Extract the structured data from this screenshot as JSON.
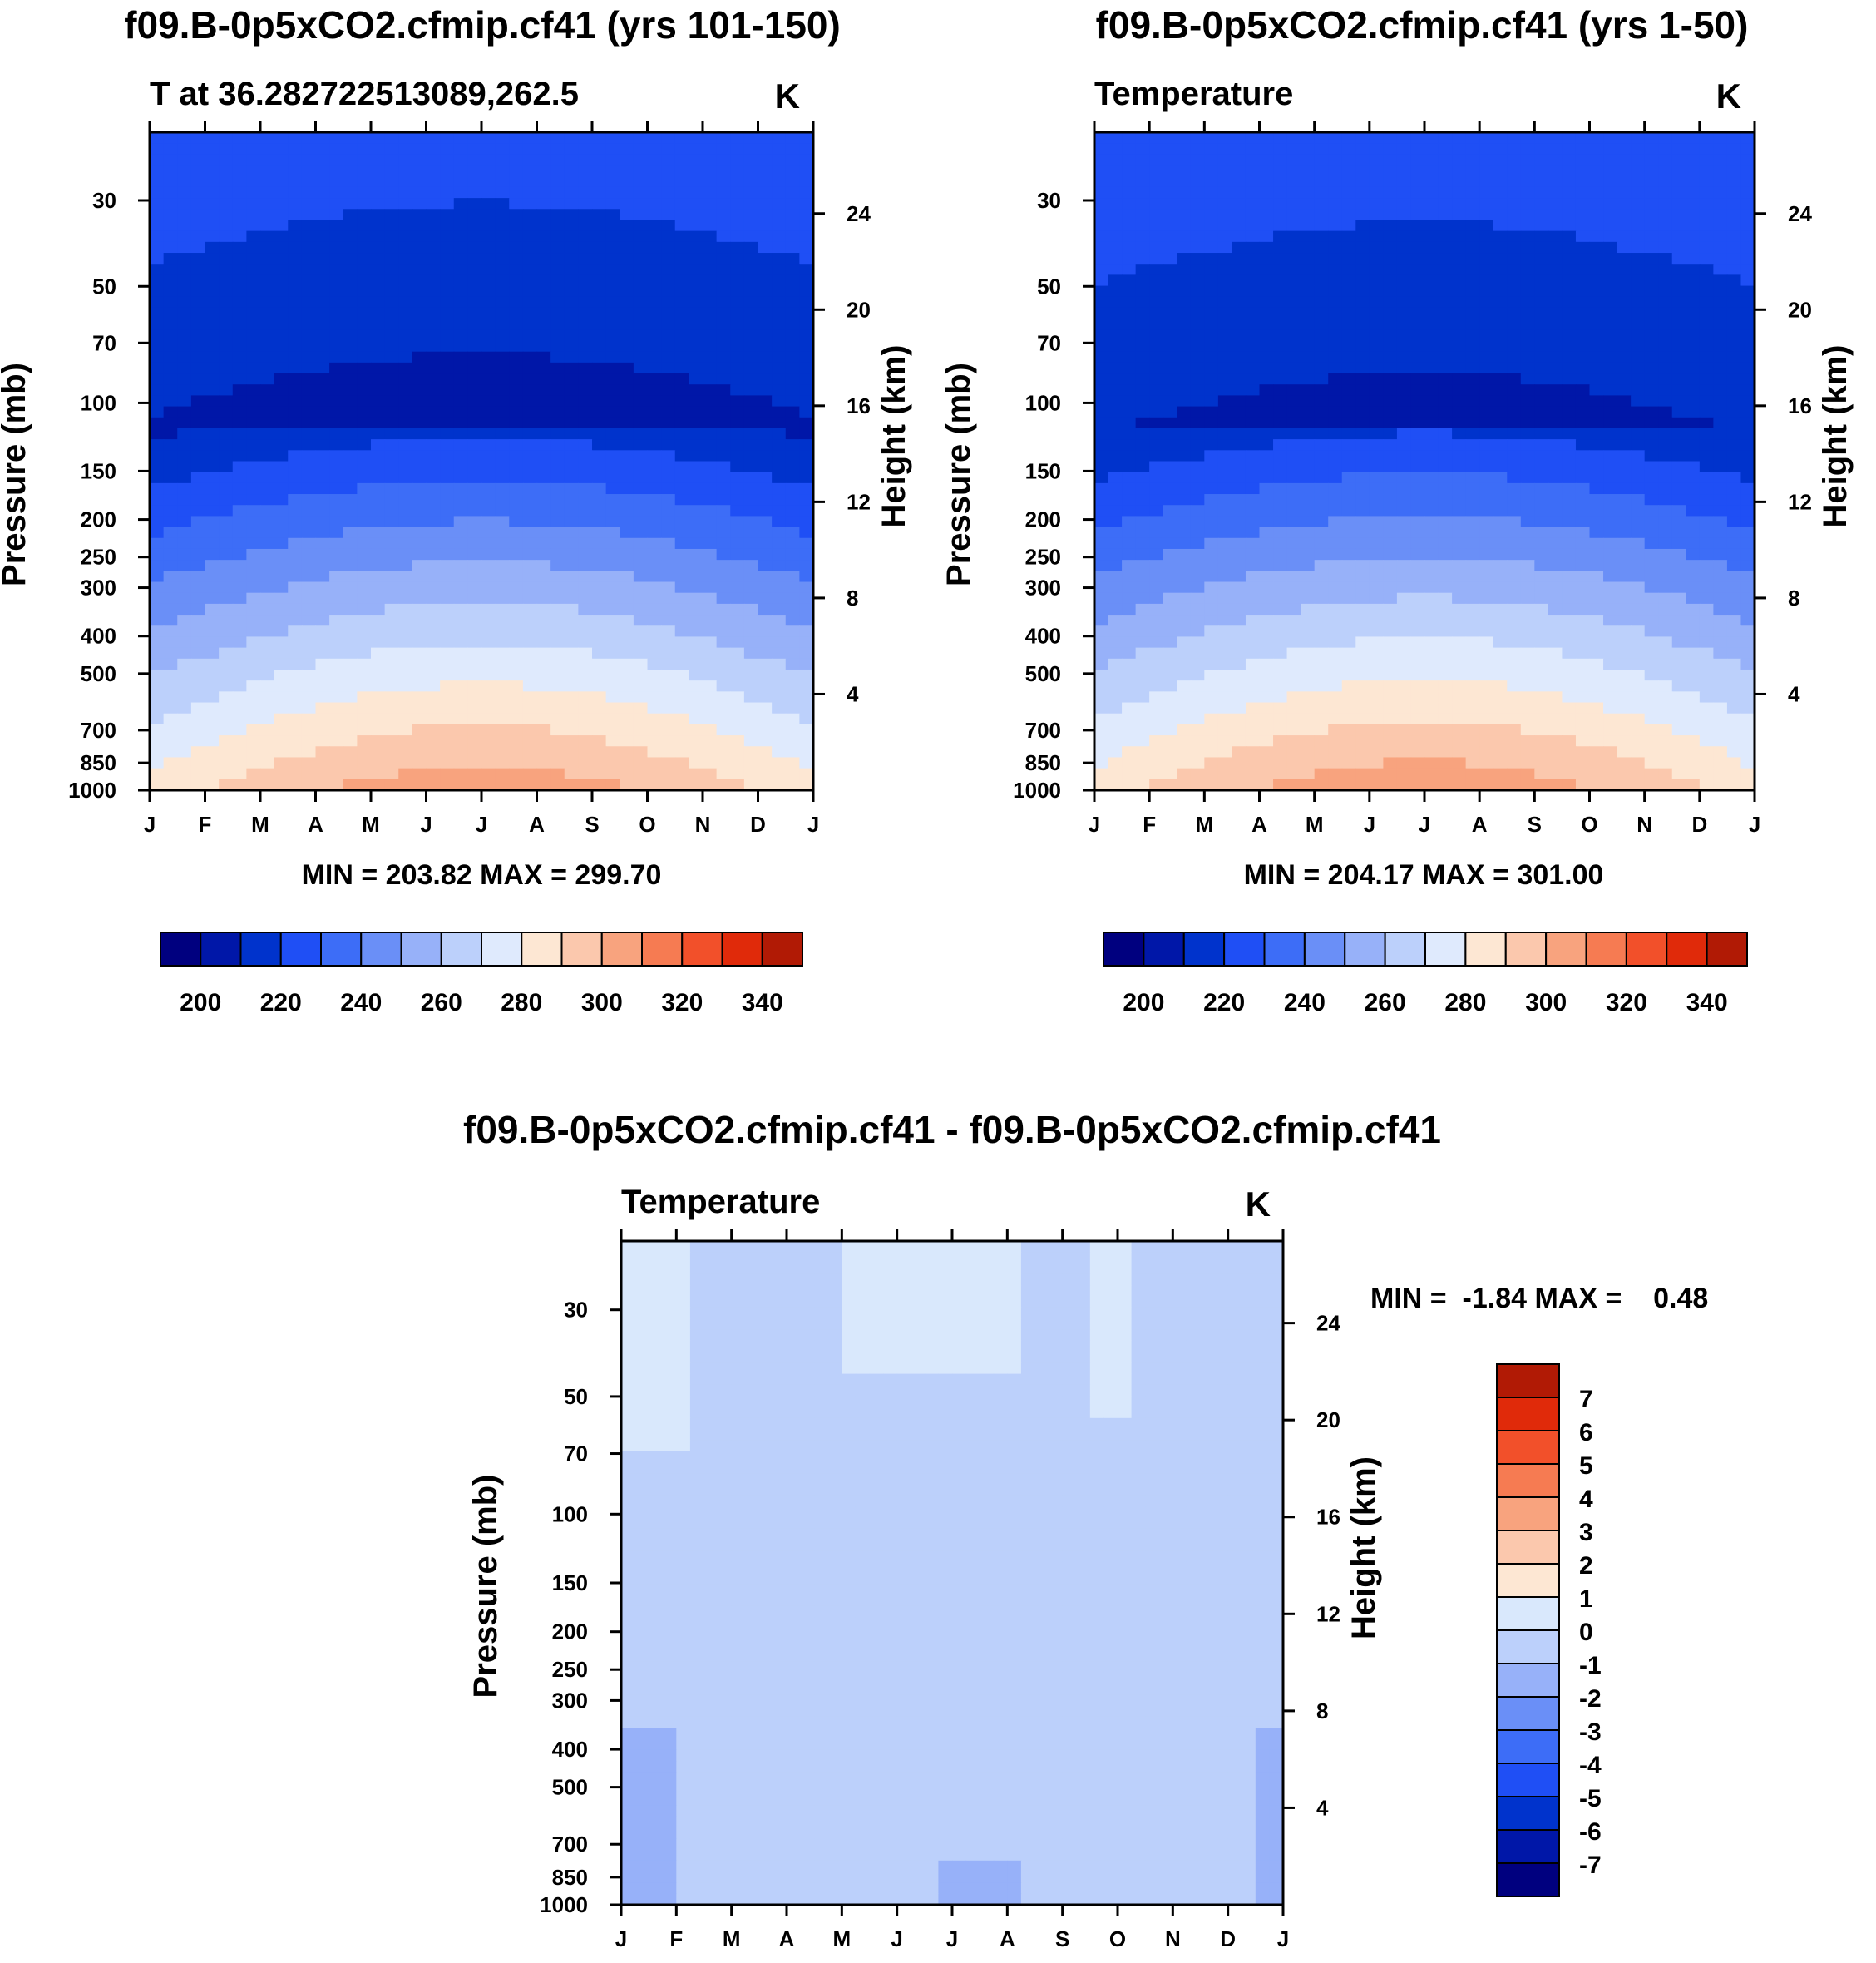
{
  "figure": {
    "top_left_title": "f09.B-0p5xCO2.cfmip.cf41 (yrs 101-150)",
    "top_right_title": "f09.B-0p5xCO2.cfmip.cf41 (yrs 1-50)",
    "bottom_title": "f09.B-0p5xCO2.cfmip.cf41 - f09.B-0p5xCO2.cfmip.cf41"
  },
  "chart_data": [
    {
      "id": "left",
      "type": "heatmap",
      "subtitle": "T at 36.282722513089,262.5",
      "units_label": "K",
      "xlabel": "",
      "ylabel": "Pressure (mb)",
      "ylabel_right": "Height (km)",
      "x_ticks": [
        "J",
        "F",
        "M",
        "A",
        "M",
        "J",
        "J",
        "A",
        "S",
        "O",
        "N",
        "D",
        "J"
      ],
      "y_ticks": [
        30,
        50,
        70,
        100,
        150,
        200,
        250,
        300,
        400,
        500,
        700,
        850,
        1000
      ],
      "y_ticks_right": [
        24,
        20,
        16,
        12,
        8,
        4
      ],
      "ylim": [
        1000,
        20
      ],
      "stats_text": "MIN = 203.82 MAX = 299.70",
      "min": 203.82,
      "max": 299.7,
      "colorbar_levels": [
        200,
        210,
        220,
        230,
        240,
        250,
        260,
        270,
        280,
        290,
        300,
        310,
        320,
        330,
        340
      ],
      "colorbar_labels": [
        "200",
        "220",
        "240",
        "260",
        "280",
        "300",
        "320",
        "340"
      ],
      "colors": [
        "#00007f",
        "#0017a8",
        "#0033cc",
        "#1f4ff5",
        "#3d6df7",
        "#6a8ff7",
        "#97b1f9",
        "#bcd0fb",
        "#dfeafd",
        "#fde7d3",
        "#fbc8ad",
        "#f8a37e",
        "#f67b52",
        "#f2502a",
        "#e02a0a",
        "#b11a05",
        "#830000"
      ]
    },
    {
      "id": "right",
      "type": "heatmap",
      "subtitle": "Temperature",
      "units_label": "K",
      "xlabel": "",
      "ylabel": "Pressure (mb)",
      "ylabel_right": "Height (km)",
      "x_ticks": [
        "J",
        "F",
        "M",
        "A",
        "M",
        "J",
        "J",
        "A",
        "S",
        "O",
        "N",
        "D",
        "J"
      ],
      "y_ticks": [
        30,
        50,
        70,
        100,
        150,
        200,
        250,
        300,
        400,
        500,
        700,
        850,
        1000
      ],
      "y_ticks_right": [
        24,
        20,
        16,
        12,
        8,
        4
      ],
      "ylim": [
        1000,
        20
      ],
      "stats_text": "MIN = 204.17 MAX = 301.00",
      "min": 204.17,
      "max": 301.0,
      "colorbar_levels": [
        200,
        210,
        220,
        230,
        240,
        250,
        260,
        270,
        280,
        290,
        300,
        310,
        320,
        330,
        340
      ],
      "colorbar_labels": [
        "200",
        "220",
        "240",
        "260",
        "280",
        "300",
        "320",
        "340"
      ],
      "colors": [
        "#00007f",
        "#0017a8",
        "#0033cc",
        "#1f4ff5",
        "#3d6df7",
        "#6a8ff7",
        "#97b1f9",
        "#bcd0fb",
        "#dfeafd",
        "#fde7d3",
        "#fbc8ad",
        "#f8a37e",
        "#f67b52",
        "#f2502a",
        "#e02a0a",
        "#b11a05",
        "#830000"
      ]
    },
    {
      "id": "diff",
      "type": "heatmap",
      "subtitle": "Temperature",
      "units_label": "K",
      "xlabel": "",
      "ylabel": "Pressure (mb)",
      "ylabel_right": "Height (km)",
      "x_ticks": [
        "J",
        "F",
        "M",
        "A",
        "M",
        "J",
        "J",
        "A",
        "S",
        "O",
        "N",
        "D",
        "J"
      ],
      "y_ticks": [
        30,
        50,
        70,
        100,
        150,
        200,
        250,
        300,
        400,
        500,
        700,
        850,
        1000
      ],
      "y_ticks_right": [
        24,
        20,
        16,
        12,
        8,
        4
      ],
      "ylim": [
        1000,
        20
      ],
      "stats_text": "MIN =  -1.84 MAX =    0.48",
      "min": -1.84,
      "max": 0.48,
      "colorbar_levels": [
        7,
        6,
        5,
        4,
        3,
        2,
        1,
        0,
        -1,
        -2,
        -3,
        -4,
        -5,
        -6,
        -7
      ],
      "colorbar_labels": [
        "7",
        "6",
        "5",
        "4",
        "3",
        "2",
        "1",
        "0",
        "-1",
        "-2",
        "-3",
        "-4",
        "-5",
        "-6",
        "-7"
      ],
      "colors": [
        "#830000",
        "#b11a05",
        "#e02a0a",
        "#f2502a",
        "#f67b52",
        "#f8a37e",
        "#fbc8ad",
        "#fde7d3",
        "#d9e8fc",
        "#bcd0fb",
        "#97b1f9",
        "#6a8ff7",
        "#3d6df7",
        "#1f4ff5",
        "#0033cc",
        "#0017a8",
        "#00007f"
      ]
    }
  ]
}
